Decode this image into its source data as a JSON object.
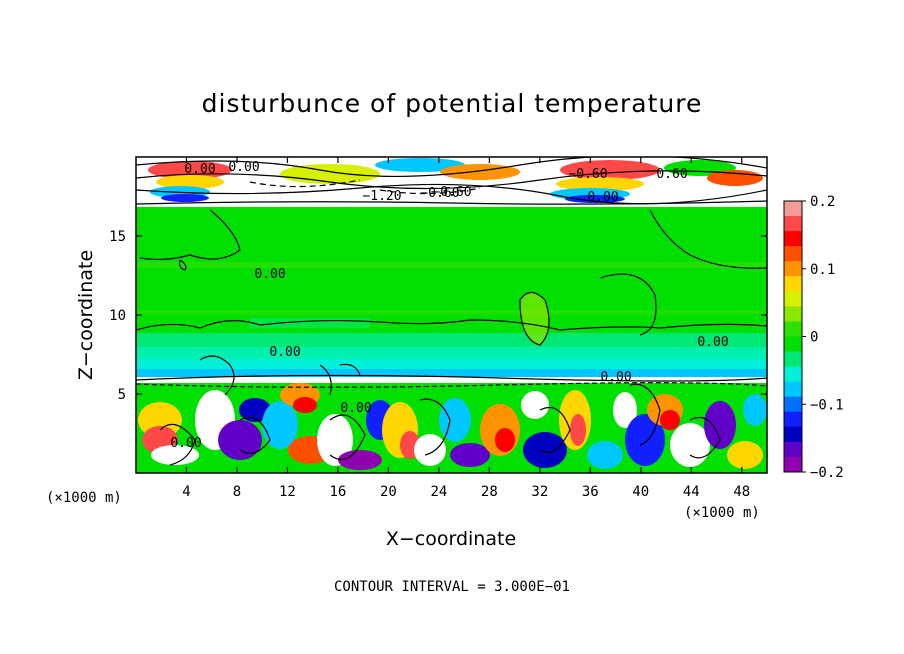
{
  "chart_data": {
    "type": "heatmap",
    "title": "disturbunce of potential temperature",
    "xlabel": "X−coordinate",
    "ylabel": "Z−coordinate",
    "x_unit": "(×1000 m)",
    "x_unit_right": "(×1000 m)",
    "x_ticks": [
      "4",
      "8",
      "12",
      "16",
      "20",
      "24",
      "28",
      "32",
      "36",
      "40",
      "44",
      "48"
    ],
    "y_ticks": [
      "5",
      "10",
      "15"
    ],
    "xlim": [
      0,
      50
    ],
    "ylim": [
      0,
      20
    ],
    "colorbar": {
      "range": [
        -0.2,
        0.2
      ],
      "tick_labels": [
        "0.2",
        "0.1",
        "0",
        "−0.1",
        "−0.2"
      ],
      "tick_values": [
        0.2,
        0.1,
        0,
        -0.1,
        -0.2
      ],
      "colors": [
        "#f49c9c",
        "#ff4848",
        "#ff0000",
        "#ff5000",
        "#ff9400",
        "#ffd600",
        "#d7f000",
        "#88e800",
        "#2ce000",
        "#00e000",
        "#00e874",
        "#00f0d8",
        "#00c8ff",
        "#0070ff",
        "#1020ff",
        "#0000c0",
        "#6000c8",
        "#9000b0"
      ]
    },
    "contour_labels": [
      "0.00",
      "0.00",
      "−0.60",
      "−0.60",
      "−1.20",
      "−0.60",
      "0.00",
      "0.60",
      "0.00",
      "0.00",
      "0.00",
      "0.00",
      "0.00",
      "0.00"
    ],
    "footer": "CONTOUR INTERVAL = 3.000E−01"
  }
}
